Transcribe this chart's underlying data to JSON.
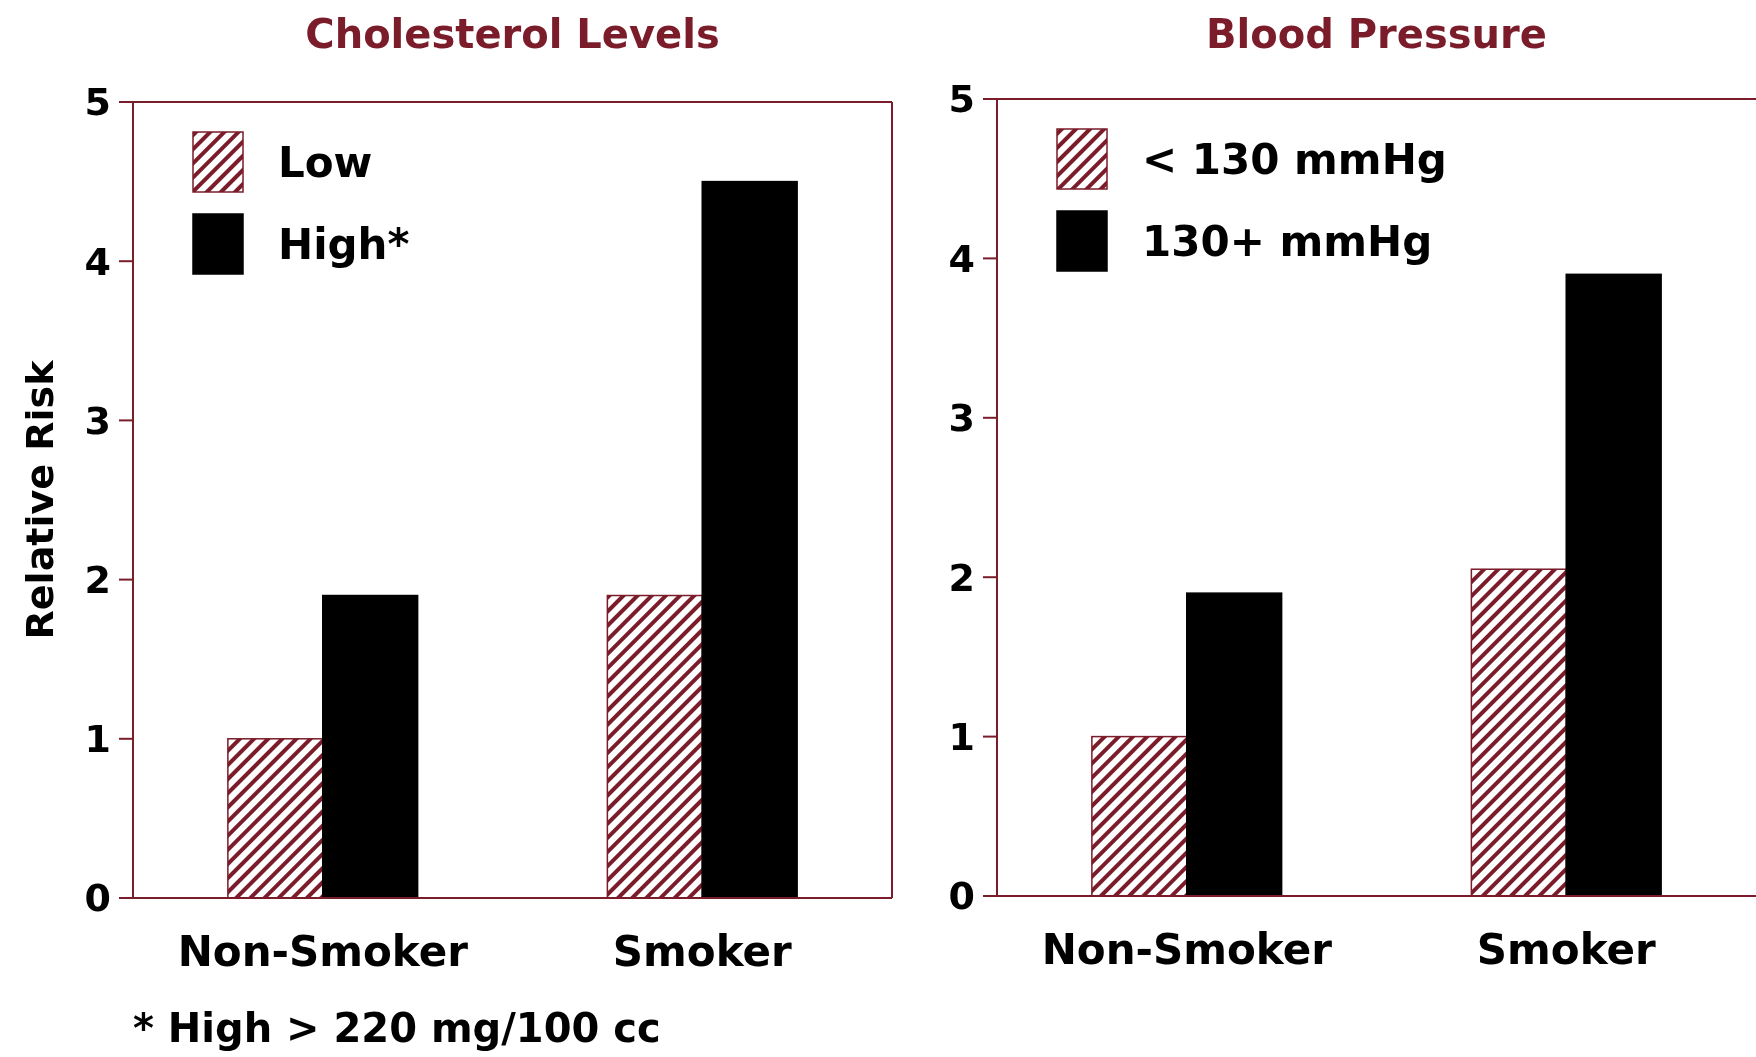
{
  "chart_data": [
    {
      "type": "bar",
      "title": "Cholesterol Levels",
      "ylabel": "Relative Risk",
      "categories": [
        "Non-Smoker",
        "Smoker"
      ],
      "series": [
        {
          "name": "Low",
          "color": "#7b1c2a",
          "values": [
            1.0,
            1.9
          ]
        },
        {
          "name": "High*",
          "color": "#000000",
          "values": [
            1.9,
            4.5
          ]
        }
      ],
      "ylim": [
        0,
        5
      ],
      "yticks": [
        0,
        1,
        2,
        3,
        4,
        5
      ],
      "grid": false,
      "legend": "top left",
      "annotations": [
        "* High > 220 mg/100 cc"
      ]
    },
    {
      "type": "bar",
      "title": "Blood Pressure",
      "categories": [
        "Non-Smoker",
        "Smoker"
      ],
      "series": [
        {
          "name": "< 130 mmHg",
          "color": "#7b1c2a",
          "values": [
            1.0,
            2.05
          ]
        },
        {
          "name": "130+ mmHg",
          "color": "#000000",
          "values": [
            1.9,
            3.9
          ]
        }
      ],
      "ylim": [
        0,
        5
      ],
      "yticks": [
        0,
        1,
        2,
        3,
        4,
        5
      ],
      "grid": false,
      "legend": "top left"
    }
  ]
}
